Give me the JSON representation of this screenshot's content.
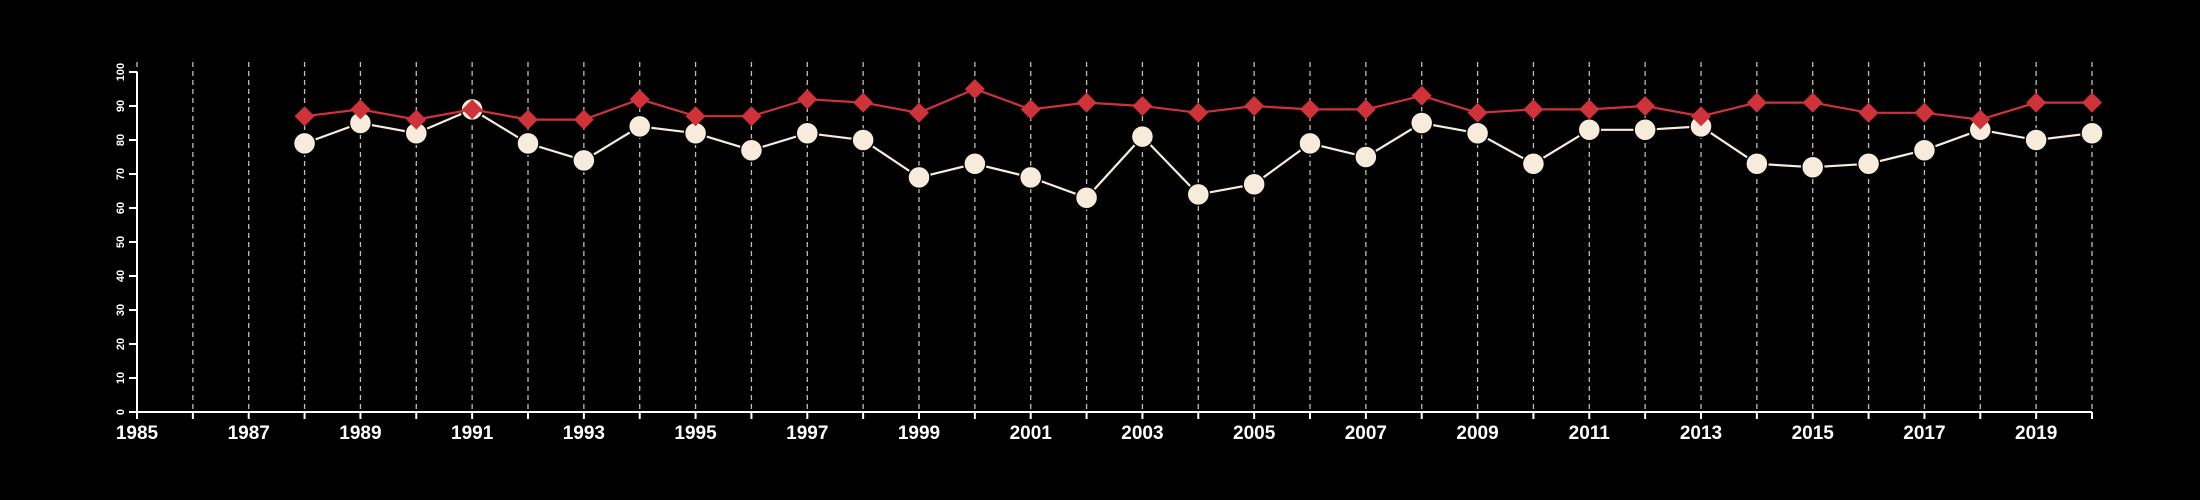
{
  "chart_data": {
    "type": "line",
    "x": [
      1988,
      1989,
      1990,
      1991,
      1992,
      1993,
      1994,
      1995,
      1996,
      1997,
      1998,
      1999,
      2000,
      2001,
      2002,
      2003,
      2004,
      2005,
      2006,
      2007,
      2008,
      2009,
      2010,
      2011,
      2012,
      2013,
      2014,
      2015,
      2016,
      2017,
      2018,
      2019,
      2020
    ],
    "series": [
      {
        "values": [
          87,
          89,
          86,
          89,
          86,
          86,
          92,
          87,
          87,
          92,
          91,
          88,
          95,
          89,
          91,
          90,
          88,
          90,
          89,
          89,
          93,
          88,
          89,
          89,
          90,
          87,
          91,
          91,
          88,
          88,
          86,
          91,
          91
        ],
        "color": "#d0323a",
        "marker": "diamond"
      },
      {
        "values": [
          79,
          85,
          82,
          89,
          79,
          74,
          84,
          82,
          77,
          82,
          80,
          69,
          73,
          69,
          63,
          81,
          64,
          67,
          79,
          75,
          85,
          82,
          73,
          83,
          83,
          84,
          73,
          72,
          73,
          77,
          83,
          80,
          82
        ],
        "color": "#f7ecdc",
        "marker": "circle"
      }
    ],
    "xlim": [
      1985,
      2020
    ],
    "ylim": [
      0,
      100
    ],
    "xticks": [
      1985,
      1987,
      1989,
      1991,
      1993,
      1995,
      1997,
      1999,
      2001,
      2003,
      2005,
      2007,
      2009,
      2011,
      2013,
      2015,
      2017,
      2019
    ],
    "yticks": [
      0,
      10,
      20,
      30,
      40,
      50,
      60,
      70,
      80,
      90,
      100
    ],
    "grid": "vertical dashed lines at each year",
    "background": "#000000",
    "axis_color": "#ffffff"
  }
}
